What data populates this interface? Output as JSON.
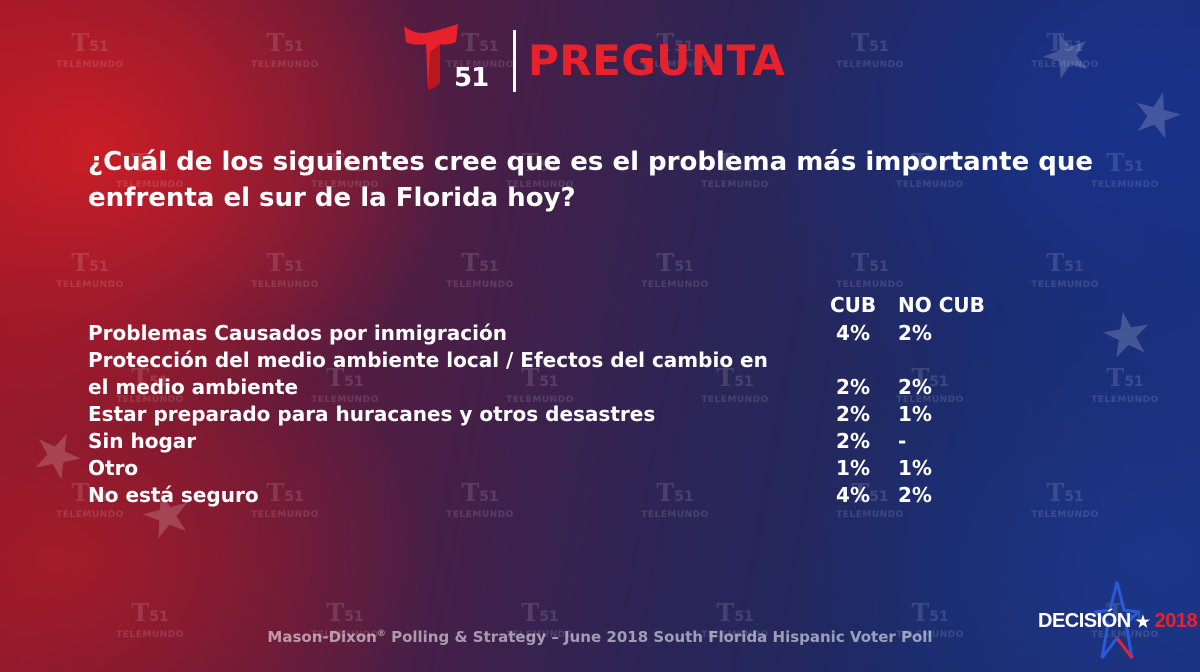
{
  "header": {
    "logo_number": "51",
    "title": "PREGUNTA"
  },
  "question": "¿Cuál de los siguientes cree que es el problema más importante que enfrenta el sur de la Florida hoy?",
  "table": {
    "columns": [
      "CUB",
      "NO CUB"
    ],
    "rows": [
      {
        "label": "Problemas Causados por inmigración",
        "cub": "4%",
        "nocub": "2%"
      },
      {
        "label": "Protección del medio ambiente local / Efectos del cambio en el medio ambiente",
        "cub": "2%",
        "nocub": "2%"
      },
      {
        "label": "Estar preparado para huracanes y otros desastres",
        "cub": "2%",
        "nocub": "1%"
      },
      {
        "label": "Sin hogar",
        "cub": "2%",
        "nocub": "-"
      },
      {
        "label": "Otro",
        "cub": "1%",
        "nocub": "1%"
      },
      {
        "label": "No está seguro",
        "cub": "4%",
        "nocub": "2%"
      }
    ]
  },
  "watermark": {
    "number": "51",
    "word": "TELEMUNDO"
  },
  "source": {
    "prefix": "Mason-Dixon",
    "mark": "®",
    "suffix": " Polling & Strategy – June 2018 South Florida Hispanic Voter Poll"
  },
  "brand": {
    "word": "DECISIÓN",
    "star": "★",
    "year": "2018"
  },
  "colors": {
    "accent_red": "#e8222c",
    "text": "#ffffff"
  }
}
